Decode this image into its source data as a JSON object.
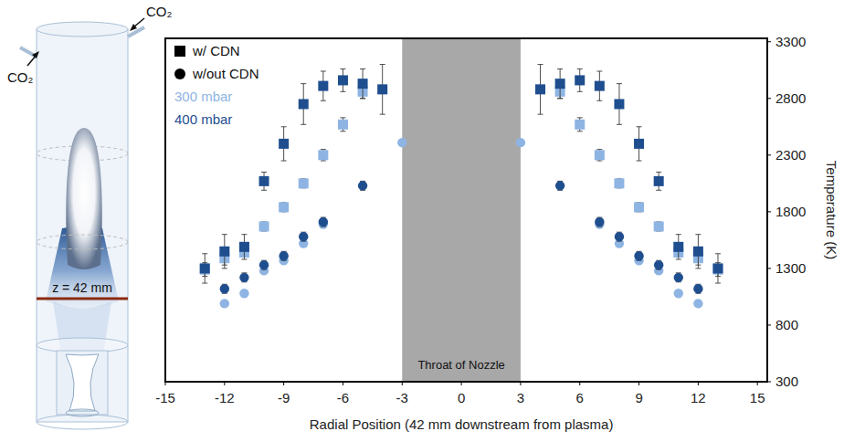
{
  "chart_data": {
    "type": "scatter",
    "x_label": "Radial Position (42 mm downstream from plasma)",
    "y_label": "Temperature (K)",
    "xlim": [
      -15,
      15.5
    ],
    "ylim": [
      300,
      3330
    ],
    "xticks": [
      -15,
      -12,
      -9,
      -6,
      -3,
      0,
      3,
      6,
      9,
      12,
      15
    ],
    "yticks": [
      300,
      800,
      1300,
      1800,
      2300,
      2800,
      3300
    ],
    "grid": false,
    "legend": "upper left",
    "legend_markers": [
      {
        "label": "w/ CDN",
        "marker": "square"
      },
      {
        "label": "w/out CDN",
        "marker": "circle"
      }
    ],
    "legend_colors": [
      {
        "label": "300 mbar",
        "color": "#8eb4e3"
      },
      {
        "label": "400 mbar",
        "color": "#1f4e8f"
      }
    ],
    "bands": [
      {
        "x": [
          -3,
          3
        ],
        "label": "Throat of Nozzle"
      }
    ],
    "series": [
      {
        "color": "#8eb4e3",
        "marker": "square",
        "x": [
          -13,
          -12,
          -11,
          -10,
          -9,
          -8,
          -7,
          -6,
          -5,
          5,
          6,
          7,
          8,
          9,
          10,
          11,
          12,
          13
        ],
        "values": [
          1290,
          1390,
          1440,
          1670,
          1840,
          2050,
          2300,
          2570,
          2860,
          2860,
          2570,
          2300,
          2050,
          1840,
          1670,
          1440,
          1390,
          1290
        ],
        "errors": [
          60,
          60,
          40,
          40,
          40,
          40,
          50,
          60,
          60,
          60,
          60,
          50,
          40,
          40,
          40,
          40,
          60,
          60
        ]
      },
      {
        "color": "#1f4e8f",
        "marker": "square",
        "x": [
          -13,
          -12,
          -11,
          -10,
          -9,
          -8,
          -7,
          -6,
          -5,
          -4,
          4,
          5,
          6,
          7,
          8,
          9,
          10,
          11,
          12,
          13
        ],
        "values": [
          1300,
          1450,
          1490,
          2070,
          2400,
          2750,
          2910,
          2960,
          2930,
          2880,
          2880,
          2930,
          2960,
          2910,
          2750,
          2400,
          2070,
          1490,
          1450,
          1300
        ],
        "errors": [
          130,
          150,
          110,
          80,
          150,
          180,
          130,
          100,
          130,
          220,
          220,
          130,
          100,
          130,
          180,
          150,
          80,
          110,
          150,
          130
        ]
      },
      {
        "color": "#8eb4e3",
        "marker": "circle",
        "x": [
          -12,
          -11,
          -10,
          -9,
          -8,
          -7,
          -3,
          3,
          7,
          8,
          9,
          10,
          11,
          12
        ],
        "values": [
          990,
          1080,
          1280,
          1370,
          1520,
          1690,
          2410,
          2410,
          1690,
          1520,
          1370,
          1280,
          1080,
          990
        ]
      },
      {
        "color": "#1f4e8f",
        "marker": "circle",
        "x": [
          -12,
          -11,
          -10,
          -9,
          -8,
          -7,
          -5,
          5,
          7,
          8,
          9,
          10,
          11,
          12
        ],
        "values": [
          1120,
          1220,
          1330,
          1410,
          1580,
          1710,
          2030,
          2030,
          1710,
          1580,
          1410,
          1330,
          1220,
          1120
        ],
        "errors": [
          40,
          40,
          40,
          40,
          40,
          40,
          40,
          40,
          40,
          40,
          40,
          40,
          40,
          40
        ]
      }
    ]
  },
  "diagram": {
    "inlet_labels": [
      "CO₂",
      "CO₂"
    ],
    "position_label": "z = 42 mm"
  }
}
